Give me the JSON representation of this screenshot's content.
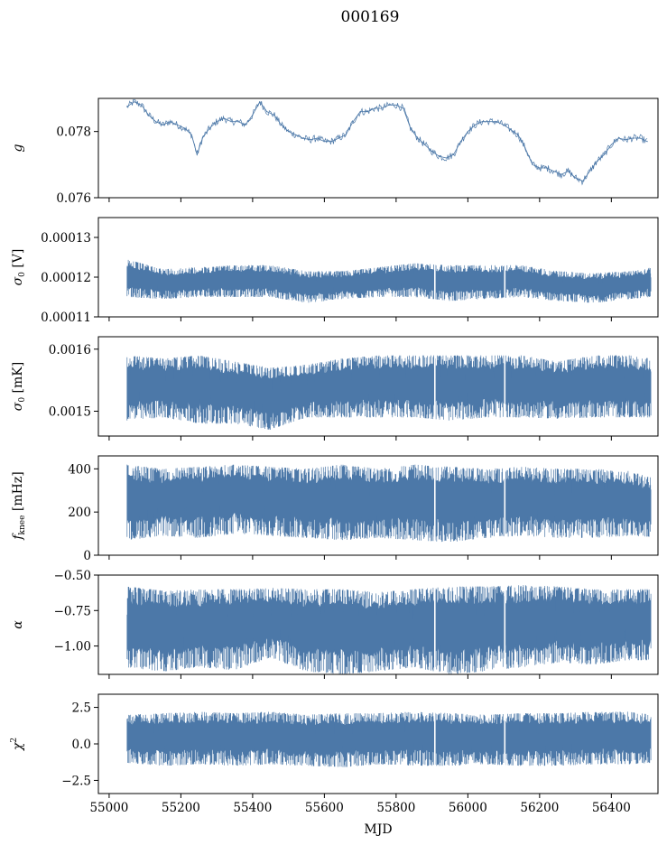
{
  "figure": {
    "title": "000169",
    "xlabel": "MJD",
    "series_color": "#4c78a8",
    "x_range": [
      54970,
      56530
    ],
    "x_ticks": [
      55000,
      55200,
      55400,
      55600,
      55800,
      56000,
      56200,
      56400
    ],
    "x_tick_labels": [
      "55000",
      "55200",
      "55400",
      "55600",
      "55800",
      "56000",
      "56200",
      "56400"
    ]
  },
  "chart_data": [
    {
      "type": "line",
      "ylabel_main": "g",
      "ylabel_sub": "",
      "ylabel_tail": "",
      "ylim": [
        0.076,
        0.079
      ],
      "y_ticks": [
        0.076,
        0.078
      ],
      "y_tick_labels": [
        "0.076",
        "0.078"
      ],
      "x": [
        55050,
        55070,
        55090,
        55110,
        55130,
        55150,
        55170,
        55190,
        55210,
        55230,
        55245,
        55260,
        55280,
        55300,
        55320,
        55340,
        55360,
        55380,
        55400,
        55420,
        55440,
        55460,
        55480,
        55500,
        55520,
        55540,
        55560,
        55580,
        55600,
        55620,
        55640,
        55660,
        55680,
        55700,
        55720,
        55740,
        55760,
        55780,
        55800,
        55820,
        55840,
        55860,
        55880,
        55900,
        55920,
        55940,
        55960,
        55980,
        56000,
        56020,
        56040,
        56060,
        56080,
        56100,
        56120,
        56140,
        56160,
        56180,
        56200,
        56220,
        56240,
        56260,
        56280,
        56300,
        56320,
        56340,
        56360,
        56380,
        56400,
        56420,
        56440,
        56460,
        56480,
        56500
      ],
      "y": [
        0.07875,
        0.0789,
        0.0788,
        0.0785,
        0.0783,
        0.0782,
        0.0783,
        0.0782,
        0.0781,
        0.0779,
        0.0773,
        0.0778,
        0.0781,
        0.0783,
        0.0784,
        0.0783,
        0.0783,
        0.0782,
        0.0785,
        0.0789,
        0.0786,
        0.0785,
        0.0782,
        0.078,
        0.0779,
        0.0778,
        0.07775,
        0.0778,
        0.0777,
        0.0777,
        0.0778,
        0.0779,
        0.0783,
        0.0786,
        0.0786,
        0.0787,
        0.0787,
        0.0788,
        0.0788,
        0.0787,
        0.0781,
        0.0778,
        0.0776,
        0.0774,
        0.07725,
        0.0772,
        0.0773,
        0.0777,
        0.078,
        0.0782,
        0.0783,
        0.0783,
        0.0783,
        0.0782,
        0.07805,
        0.0779,
        0.0775,
        0.077,
        0.0769,
        0.0769,
        0.0768,
        0.0767,
        0.0768,
        0.0766,
        0.0765,
        0.0768,
        0.0771,
        0.0773,
        0.0776,
        0.0778,
        0.07775,
        0.0778,
        0.0778,
        0.0777
      ]
    },
    {
      "type": "area",
      "ylabel_main": "σ",
      "ylabel_sub": "0",
      "ylabel_tail": " [V]",
      "ylim": [
        0.00011,
        0.000135
      ],
      "y_ticks": [
        0.00011,
        0.00012,
        0.00013
      ],
      "y_tick_labels": [
        "0.00011",
        "0.00012",
        "0.00013"
      ],
      "x": [
        55050,
        55150,
        55250,
        55350,
        55450,
        55550,
        55650,
        55750,
        55850,
        55950,
        56050,
        56150,
        56250,
        56350,
        56450,
        56510
      ],
      "lower": [
        0.000115,
        0.0001145,
        0.000115,
        0.000115,
        0.000115,
        0.0001135,
        0.0001145,
        0.000115,
        0.000115,
        0.000114,
        0.0001145,
        0.000115,
        0.000114,
        0.0001135,
        0.0001145,
        0.000115
      ],
      "upper": [
        0.0001245,
        0.000122,
        0.0001225,
        0.000123,
        0.000123,
        0.0001215,
        0.0001215,
        0.0001225,
        0.0001235,
        0.000123,
        0.000123,
        0.000123,
        0.0001215,
        0.000121,
        0.0001215,
        0.0001225
      ]
    },
    {
      "type": "area",
      "ylabel_main": "σ",
      "ylabel_sub": "0",
      "ylabel_tail": " [mK]",
      "ylim": [
        0.00146,
        0.00162
      ],
      "y_ticks": [
        0.0015,
        0.0016
      ],
      "y_tick_labels": [
        "0.0015",
        "0.0016"
      ],
      "x": [
        55050,
        55150,
        55250,
        55350,
        55450,
        55550,
        55650,
        55750,
        55850,
        55950,
        56050,
        56150,
        56250,
        56350,
        56450,
        56510
      ],
      "lower": [
        0.001485,
        0.00149,
        0.00148,
        0.00148,
        0.00147,
        0.00149,
        0.00149,
        0.00149,
        0.00149,
        0.001485,
        0.00149,
        0.00149,
        0.001488,
        0.00149,
        0.00149,
        0.00149
      ],
      "upper": [
        0.00159,
        0.001585,
        0.00159,
        0.00158,
        0.00157,
        0.001575,
        0.001585,
        0.00159,
        0.00159,
        0.00159,
        0.00159,
        0.00159,
        0.00158,
        0.00159,
        0.00159,
        0.001585
      ]
    },
    {
      "type": "area",
      "ylabel_main": "f",
      "ylabel_sub": "knee",
      "ylabel_tail": " [mHz]",
      "ylim": [
        0,
        460
      ],
      "y_ticks": [
        0,
        200,
        400
      ],
      "y_tick_labels": [
        "0",
        "200",
        "400"
      ],
      "x": [
        55050,
        55150,
        55250,
        55350,
        55450,
        55550,
        55650,
        55750,
        55850,
        55950,
        56050,
        56150,
        56250,
        56350,
        56450,
        56510
      ],
      "lower": [
        70,
        90,
        80,
        100,
        90,
        80,
        70,
        80,
        70,
        60,
        80,
        90,
        80,
        80,
        90,
        85
      ],
      "upper": [
        420,
        400,
        410,
        420,
        410,
        400,
        420,
        400,
        420,
        410,
        400,
        410,
        400,
        400,
        390,
        360
      ]
    },
    {
      "type": "area",
      "ylabel_main": "α",
      "ylabel_sub": "",
      "ylabel_tail": "",
      "ylim": [
        -1.2,
        -0.5
      ],
      "y_ticks": [
        -1.0,
        -0.75,
        -0.5
      ],
      "y_tick_labels": [
        "−1.00",
        "−0.75",
        "−0.50"
      ],
      "x": [
        55050,
        55150,
        55250,
        55350,
        55450,
        55550,
        55650,
        55750,
        55850,
        55950,
        56050,
        56150,
        56250,
        56350,
        56450,
        56510
      ],
      "lower": [
        -1.15,
        -1.18,
        -1.15,
        -1.17,
        -1.08,
        -1.18,
        -1.2,
        -1.18,
        -1.15,
        -1.2,
        -1.18,
        -1.15,
        -1.12,
        -1.13,
        -1.1,
        -1.1
      ],
      "upper": [
        -0.58,
        -0.61,
        -0.6,
        -0.6,
        -0.59,
        -0.6,
        -0.6,
        -0.62,
        -0.6,
        -0.58,
        -0.58,
        -0.57,
        -0.58,
        -0.6,
        -0.6,
        -0.6
      ]
    },
    {
      "type": "area",
      "ylabel_main": "χ",
      "ylabel_sub": "",
      "ylabel_sup": "2",
      "ylabel_tail": "",
      "ylim": [
        -3.4,
        3.4
      ],
      "y_ticks": [
        -2.5,
        0.0,
        2.5
      ],
      "y_tick_labels": [
        "−2.5",
        "0.0",
        "2.5"
      ],
      "x": [
        55050,
        55150,
        55250,
        55350,
        55450,
        55550,
        55650,
        55750,
        55850,
        55950,
        56050,
        56150,
        56250,
        56350,
        56450,
        56510
      ],
      "lower": [
        -1.3,
        -1.5,
        -1.4,
        -1.5,
        -1.4,
        -1.5,
        -1.6,
        -1.4,
        -1.5,
        -1.5,
        -1.4,
        -1.5,
        -1.5,
        -1.4,
        -1.4,
        -1.3
      ],
      "upper": [
        2.0,
        2.1,
        2.2,
        2.1,
        2.2,
        2.0,
        2.1,
        2.1,
        2.2,
        2.1,
        2.0,
        2.1,
        2.1,
        2.2,
        2.2,
        2.0
      ]
    }
  ]
}
